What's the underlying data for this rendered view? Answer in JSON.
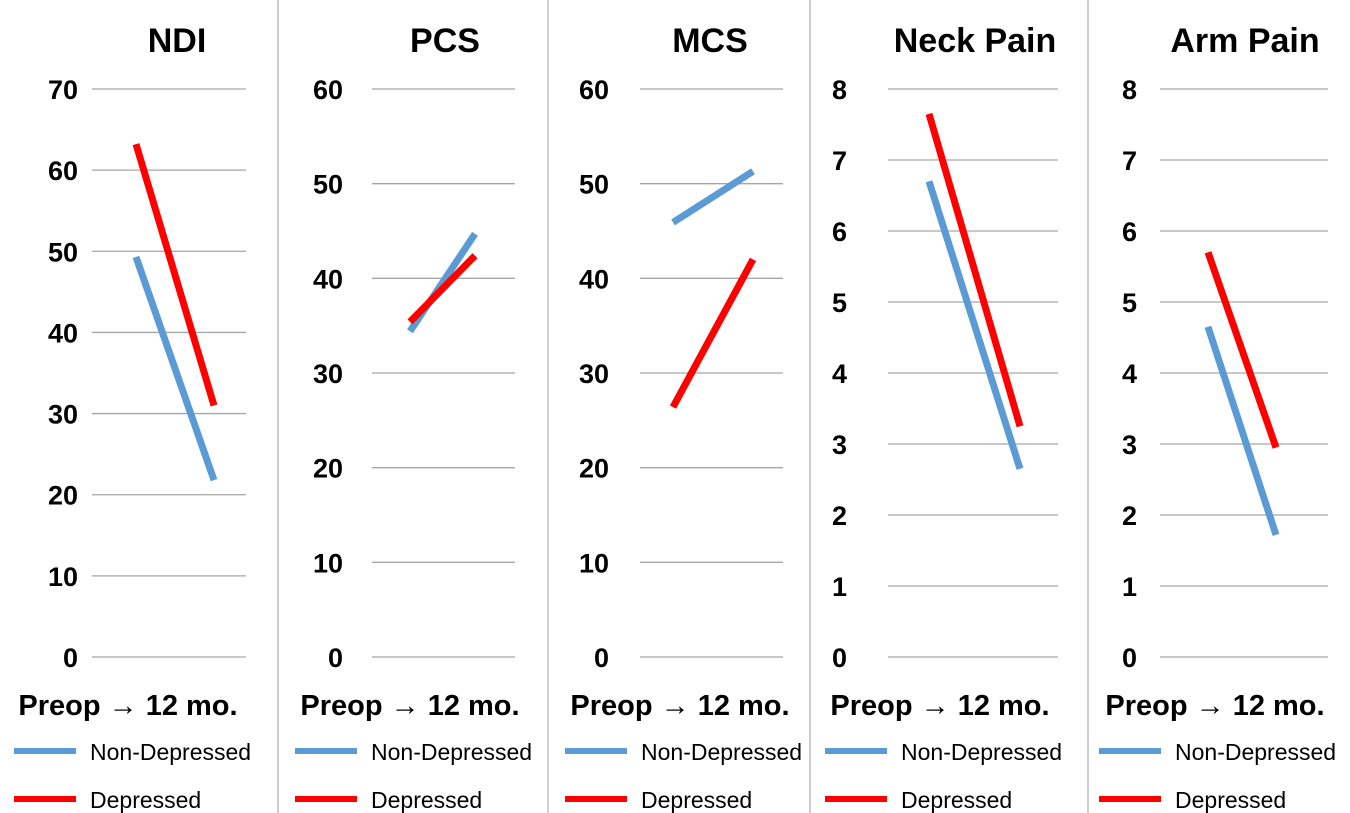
{
  "colors": {
    "non_depressed": "#5b9bd5",
    "depressed": "#ff0000",
    "grid": "#a6a6a6"
  },
  "legend": {
    "non_depressed": "Non-Depressed",
    "depressed": "Depressed"
  },
  "chart_data": [
    {
      "type": "line",
      "title": "NDI",
      "x": [
        "Preop",
        "12 mo."
      ],
      "xlabel": "Preop → 12 mo.",
      "ylim": [
        0,
        70
      ],
      "yticks": [
        0,
        10,
        20,
        30,
        40,
        50,
        60,
        70
      ],
      "grid": true,
      "series": [
        {
          "name": "Non-Depressed",
          "values": [
            49.3,
            21.8
          ]
        },
        {
          "name": "Depressed",
          "values": [
            63.2,
            31.0
          ]
        }
      ]
    },
    {
      "type": "line",
      "title": "PCS",
      "x": [
        "Preop",
        "12 mo."
      ],
      "xlabel": "Preop → 12 mo.",
      "ylim": [
        0,
        60
      ],
      "yticks": [
        0,
        10,
        20,
        30,
        40,
        50,
        60
      ],
      "grid": true,
      "series": [
        {
          "name": "Non-Depressed",
          "values": [
            34.4,
            44.7
          ]
        },
        {
          "name": "Depressed",
          "values": [
            35.4,
            42.4
          ]
        }
      ]
    },
    {
      "type": "line",
      "title": "MCS",
      "x": [
        "Preop",
        "12 mo."
      ],
      "xlabel": "Preop → 12 mo.",
      "ylim": [
        0,
        60
      ],
      "yticks": [
        0,
        10,
        20,
        30,
        40,
        50,
        60
      ],
      "grid": true,
      "series": [
        {
          "name": "Non-Depressed",
          "values": [
            45.9,
            51.3
          ]
        },
        {
          "name": "Depressed",
          "values": [
            26.4,
            42.0
          ]
        }
      ]
    },
    {
      "type": "line",
      "title": "Neck Pain",
      "x": [
        "Preop",
        "12 mo."
      ],
      "xlabel": "Preop → 12 mo.",
      "ylim": [
        0,
        8
      ],
      "yticks": [
        0,
        1,
        2,
        3,
        4,
        5,
        6,
        7,
        8
      ],
      "grid": true,
      "series": [
        {
          "name": "Non-Depressed",
          "values": [
            6.7,
            2.65
          ]
        },
        {
          "name": "Depressed",
          "values": [
            7.65,
            3.25
          ]
        }
      ]
    },
    {
      "type": "line",
      "title": "Arm Pain",
      "x": [
        "Preop",
        "12 mo."
      ],
      "xlabel": "Preop → 12 mo.",
      "ylim": [
        0,
        8
      ],
      "yticks": [
        0,
        1,
        2,
        3,
        4,
        5,
        6,
        7,
        8
      ],
      "grid": true,
      "series": [
        {
          "name": "Non-Depressed",
          "values": [
            4.65,
            1.72
          ]
        },
        {
          "name": "Depressed",
          "values": [
            5.7,
            2.95
          ]
        }
      ]
    }
  ]
}
